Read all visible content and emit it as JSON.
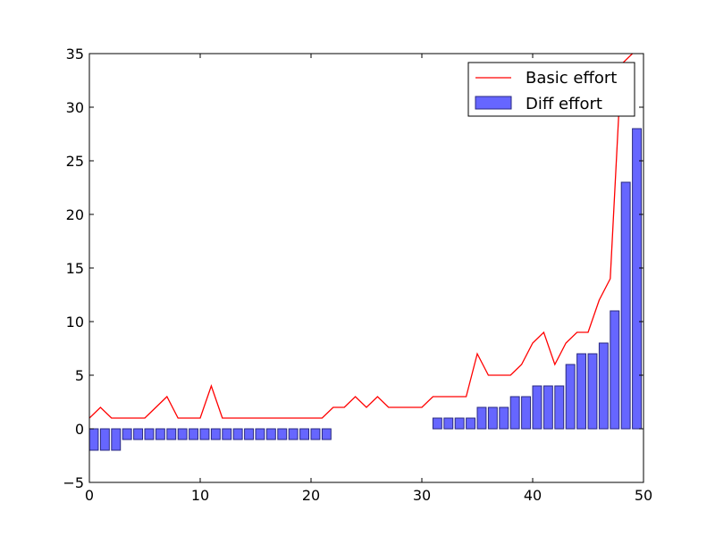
{
  "chart_data": {
    "type": "bar",
    "title": "",
    "xlabel": "",
    "ylabel": "",
    "xlim": [
      0,
      50
    ],
    "ylim": [
      -5,
      35
    ],
    "xticks": [
      0,
      10,
      20,
      30,
      40,
      50
    ],
    "yticks": [
      -5,
      0,
      5,
      10,
      15,
      20,
      25,
      30,
      35
    ],
    "x": [
      0,
      1,
      2,
      3,
      4,
      5,
      6,
      7,
      8,
      9,
      10,
      11,
      12,
      13,
      14,
      15,
      16,
      17,
      18,
      19,
      20,
      21,
      22,
      23,
      24,
      25,
      26,
      27,
      28,
      29,
      30,
      31,
      32,
      33,
      34,
      35,
      36,
      37,
      38,
      39,
      40,
      41,
      42,
      43,
      44,
      45,
      46,
      47,
      48,
      49
    ],
    "grid": false,
    "legend_position": "top-right",
    "series": [
      {
        "name": "Basic effort",
        "kind": "line",
        "color": "#ff0000",
        "values": [
          1,
          2,
          1,
          1,
          1,
          1,
          2,
          3,
          1,
          1,
          1,
          4,
          1,
          1,
          1,
          1,
          1,
          1,
          1,
          1,
          1,
          1,
          2,
          2,
          3,
          2,
          3,
          2,
          2,
          2,
          2,
          3,
          3,
          3,
          3,
          7,
          5,
          5,
          5,
          6,
          8,
          9,
          6,
          8,
          9,
          9,
          12,
          14,
          34,
          35
        ]
      },
      {
        "name": "Diff effort",
        "kind": "bar",
        "color": "#6666ff",
        "edgecolor": "#2a2a80",
        "values": [
          -2,
          -2,
          -2,
          -1,
          -1,
          -1,
          -1,
          -1,
          -1,
          -1,
          -1,
          -1,
          -1,
          -1,
          -1,
          -1,
          -1,
          -1,
          -1,
          -1,
          -1,
          -1,
          0,
          0,
          0,
          0,
          0,
          0,
          0,
          0,
          0,
          1,
          1,
          1,
          1,
          2,
          2,
          2,
          3,
          3,
          4,
          4,
          4,
          6,
          7,
          7,
          8,
          11,
          23,
          28
        ]
      }
    ]
  }
}
